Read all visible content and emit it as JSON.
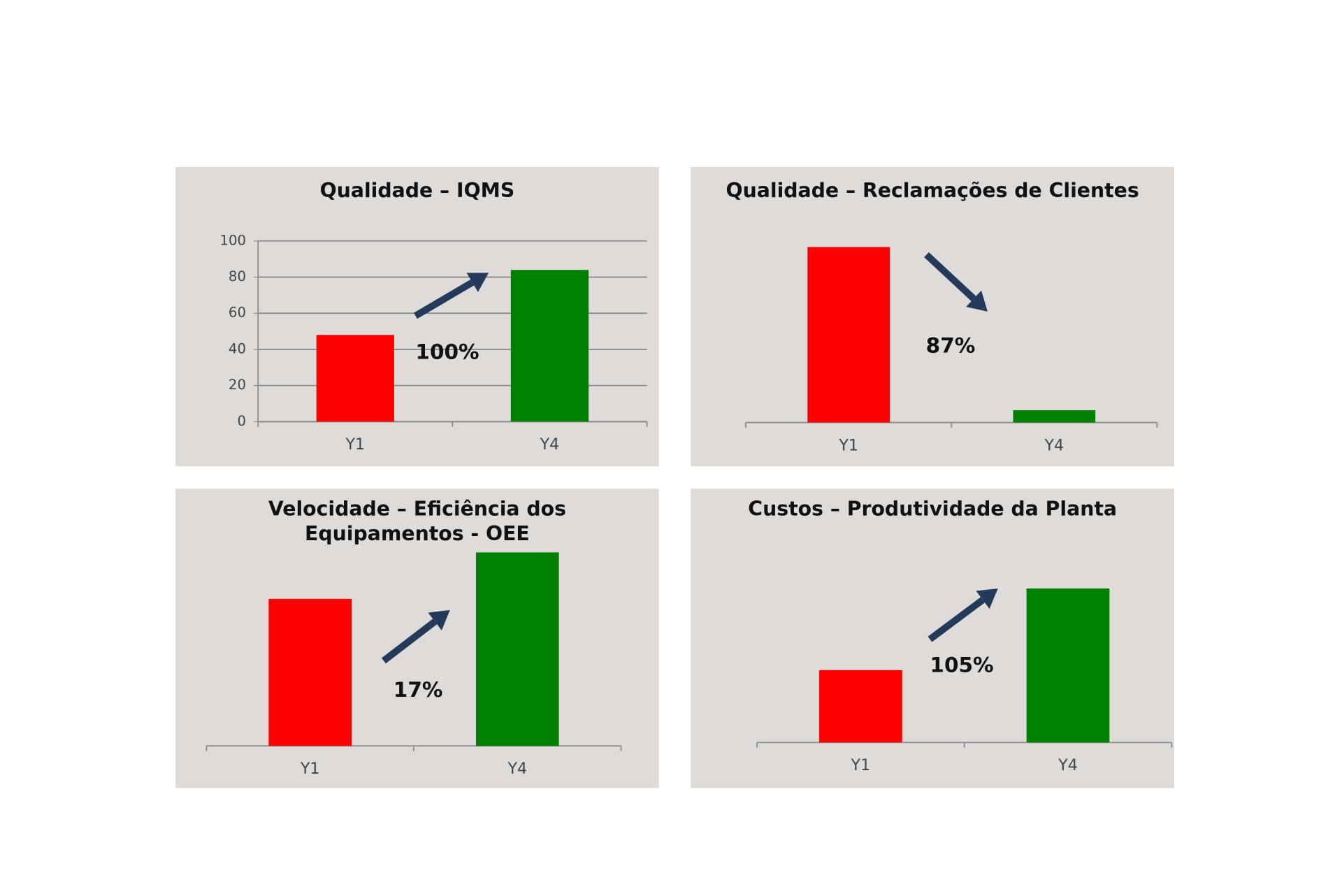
{
  "chart_data": [
    {
      "type": "bar",
      "title": "Qualidade – IQMS",
      "categories": [
        "Y1",
        "Y4"
      ],
      "values": [
        48,
        84
      ],
      "colors": [
        "#ff0000",
        "#008000"
      ],
      "ylim": [
        0,
        100
      ],
      "yticks": [
        0,
        20,
        40,
        60,
        80,
        100
      ],
      "grid": true,
      "annotation": "100%"
    },
    {
      "type": "bar",
      "title": "Qualidade – Reclamações  de Clientes",
      "categories": [
        "Y1",
        "Y4"
      ],
      "values": [
        100,
        7
      ],
      "colors": [
        "#ff0000",
        "#008000"
      ],
      "annotation": "87%"
    },
    {
      "type": "bar",
      "title": "Velocidade – Eficiência dos Equipamentos - OEE",
      "categories": [
        "Y1",
        "Y4"
      ],
      "values": [
        76,
        100
      ],
      "colors": [
        "#ff0000",
        "#008000"
      ],
      "annotation": "17%"
    },
    {
      "type": "bar",
      "title": "Custos – Produtividade da Planta",
      "categories": [
        "Y1",
        "Y4"
      ],
      "values": [
        47,
        100
      ],
      "colors": [
        "#ff0000",
        "#008000"
      ],
      "annotation": "105%"
    }
  ]
}
